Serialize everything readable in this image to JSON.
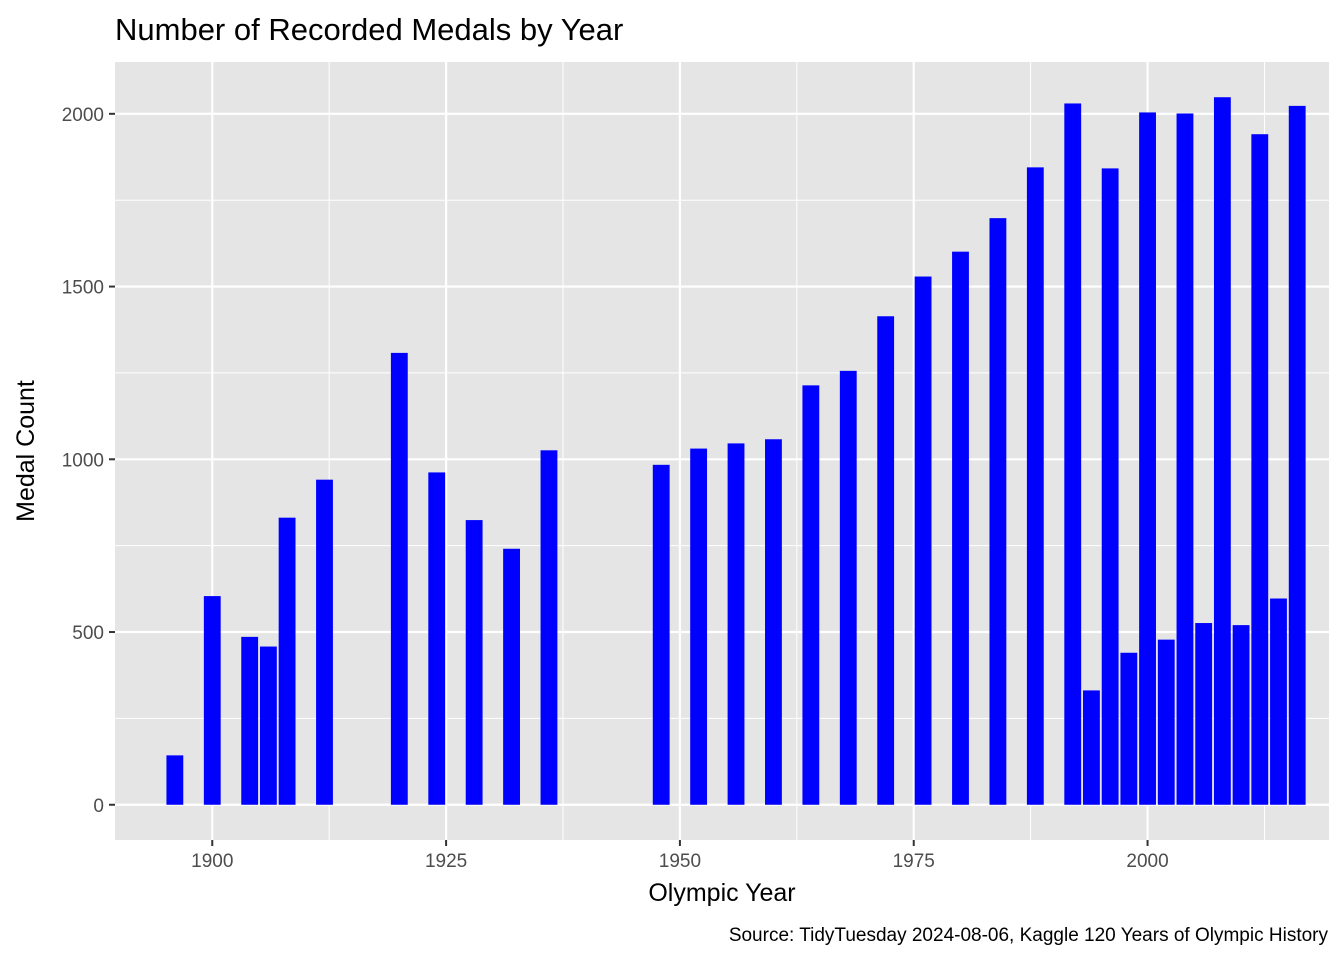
{
  "chart_data": {
    "type": "bar",
    "title": "Number of Recorded Medals by Year",
    "xlabel": "Olympic Year",
    "ylabel": "Medal Count",
    "caption": "Source: TidyTuesday 2024-08-06, Kaggle 120 Years of Olympic History",
    "xlim": [
      1889.6,
      2019.4
    ],
    "ylim": [
      -102,
      2150
    ],
    "x_ticks": [
      1900,
      1925,
      1950,
      1975,
      2000
    ],
    "y_ticks": [
      0,
      500,
      1000,
      1500,
      2000
    ],
    "grid": true,
    "bar_color": "#0000FF",
    "background_color": "#E5E5E5",
    "data": [
      {
        "x": 1896,
        "y": 143
      },
      {
        "x": 1900,
        "y": 604
      },
      {
        "x": 1904,
        "y": 486
      },
      {
        "x": 1906,
        "y": 458
      },
      {
        "x": 1908,
        "y": 831
      },
      {
        "x": 1912,
        "y": 941
      },
      {
        "x": 1920,
        "y": 1308
      },
      {
        "x": 1924,
        "y": 962
      },
      {
        "x": 1928,
        "y": 824
      },
      {
        "x": 1932,
        "y": 741
      },
      {
        "x": 1936,
        "y": 1026
      },
      {
        "x": 1948,
        "y": 984
      },
      {
        "x": 1952,
        "y": 1031
      },
      {
        "x": 1956,
        "y": 1046
      },
      {
        "x": 1960,
        "y": 1058
      },
      {
        "x": 1964,
        "y": 1214
      },
      {
        "x": 1968,
        "y": 1256
      },
      {
        "x": 1972,
        "y": 1414
      },
      {
        "x": 1976,
        "y": 1529
      },
      {
        "x": 1980,
        "y": 1601
      },
      {
        "x": 1984,
        "y": 1698
      },
      {
        "x": 1988,
        "y": 1845
      },
      {
        "x": 1992,
        "y": 2030
      },
      {
        "x": 1994,
        "y": 331
      },
      {
        "x": 1996,
        "y": 1842
      },
      {
        "x": 1998,
        "y": 440
      },
      {
        "x": 2000,
        "y": 2004
      },
      {
        "x": 2002,
        "y": 478
      },
      {
        "x": 2004,
        "y": 2001
      },
      {
        "x": 2006,
        "y": 526
      },
      {
        "x": 2008,
        "y": 2048
      },
      {
        "x": 2010,
        "y": 520
      },
      {
        "x": 2012,
        "y": 1941
      },
      {
        "x": 2014,
        "y": 597
      },
      {
        "x": 2016,
        "y": 2023
      }
    ]
  }
}
